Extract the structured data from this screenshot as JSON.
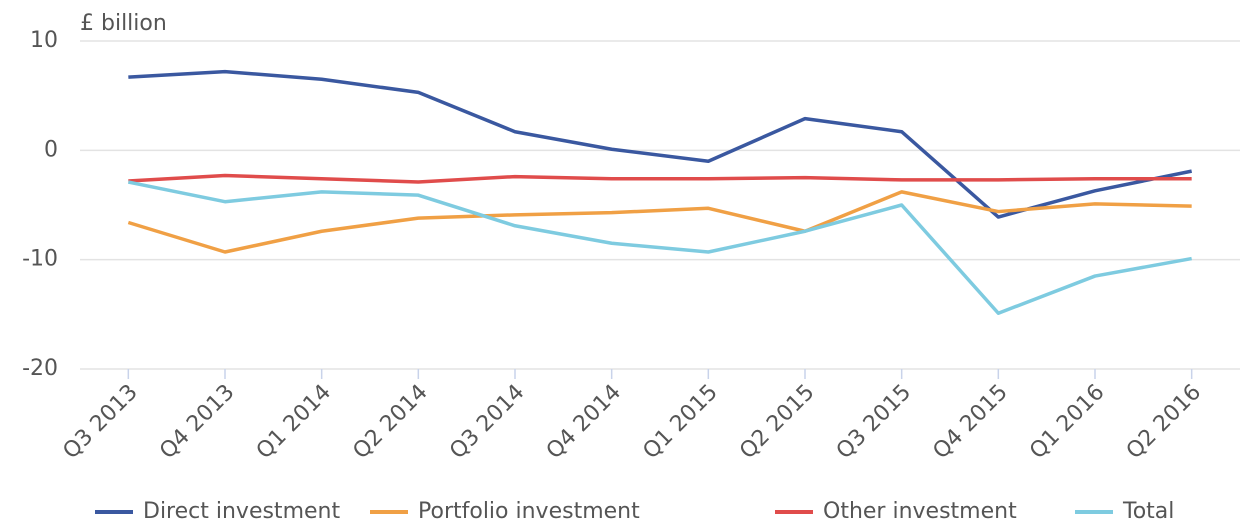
{
  "chart_data": {
    "type": "line",
    "y_label": "£ billion",
    "categories": [
      "Q3 2013",
      "Q4 2013",
      "Q1 2014",
      "Q2 2014",
      "Q3 2014",
      "Q4 2014",
      "Q1 2015",
      "Q2 2015",
      "Q3 2015",
      "Q4 2015",
      "Q1 2016",
      "Q2 2016"
    ],
    "series": [
      {
        "name": "Direct investment",
        "color": "#3a58a0",
        "values": [
          6.7,
          7.2,
          6.5,
          5.3,
          1.7,
          0.1,
          -1.0,
          2.9,
          1.7,
          -6.1,
          -3.7,
          -1.9
        ]
      },
      {
        "name": "Portfolio investment",
        "color": "#f0a045",
        "values": [
          -6.6,
          -9.3,
          -7.4,
          -6.2,
          -5.9,
          -5.7,
          -5.3,
          -7.4,
          -3.8,
          -5.6,
          -4.9,
          -5.1
        ]
      },
      {
        "name": "Other investment",
        "color": "#e04c4b",
        "values": [
          -2.8,
          -2.3,
          -2.6,
          -2.9,
          -2.4,
          -2.6,
          -2.6,
          -2.5,
          -2.7,
          -2.7,
          -2.6,
          -2.6
        ]
      },
      {
        "name": "Total",
        "color": "#7ecbe0",
        "values": [
          -2.9,
          -4.7,
          -3.8,
          -4.1,
          -6.9,
          -8.5,
          -9.3,
          -7.4,
          -5.0,
          -14.9,
          -11.5,
          -9.9
        ]
      }
    ],
    "ylim": [
      -20,
      10
    ],
    "yticks": [
      -20,
      -10,
      0,
      10
    ],
    "grid": true
  }
}
